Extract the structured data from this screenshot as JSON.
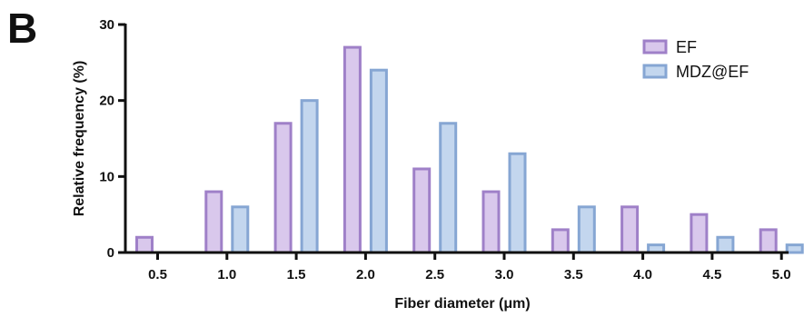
{
  "panel_label": "B",
  "chart_data": {
    "type": "bar",
    "xlabel": "Fiber diameter (μm)",
    "ylabel": "Relative frequency (%)",
    "ylim": [
      0,
      30
    ],
    "yticks": [
      "0",
      "10",
      "20",
      "30"
    ],
    "categories": [
      "0.5",
      "1.0",
      "1.5",
      "2.0",
      "2.5",
      "3.0",
      "3.5",
      "4.0",
      "4.5",
      "5.0"
    ],
    "series": [
      {
        "name": "EF",
        "values": [
          2,
          8,
          17,
          27,
          11,
          8,
          3,
          6,
          5,
          3
        ]
      },
      {
        "name": "MDZ@EF",
        "values": [
          0,
          6,
          20,
          24,
          17,
          13,
          6,
          1,
          2,
          1
        ]
      }
    ],
    "legend_position": "top-right",
    "colors": {
      "EF_fill": "#d9c8ec",
      "EF_stroke": "#9f80c8",
      "MDZ@EF_fill": "#c3d6ee",
      "MDZ@EF_stroke": "#86a6d3",
      "axis": "#111111"
    }
  }
}
